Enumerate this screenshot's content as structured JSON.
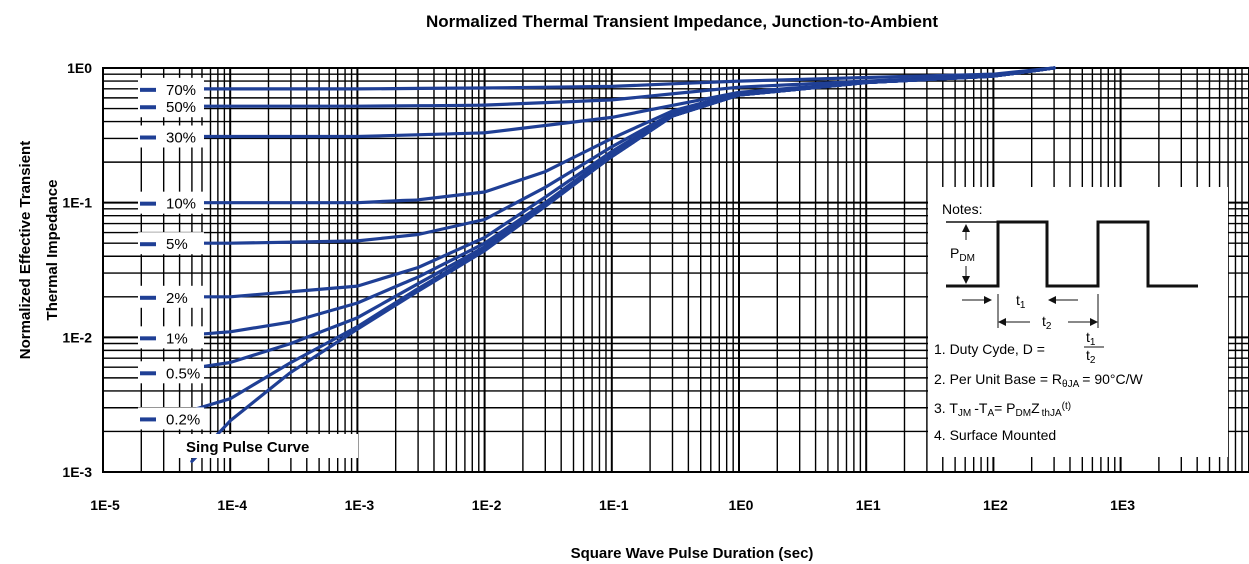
{
  "chart_data": {
    "type": "line",
    "title": "Normalized Thermal Transient Impedance, Junction-to-Ambient",
    "xlabel": "Square Wave Pulse Duration (sec)",
    "ylabel_line1": "Normalized Effective Transient",
    "ylabel_line2": "Thermal Impedance",
    "x_scale": "log",
    "y_scale": "log",
    "xlim": [
      1e-05,
      10000
    ],
    "ylim": [
      0.001,
      1
    ],
    "x_ticks": [
      {
        "value": 1e-05,
        "label": "1E-5"
      },
      {
        "value": 0.0001,
        "label": "1E-4"
      },
      {
        "value": 0.001,
        "label": "1E-3"
      },
      {
        "value": 0.01,
        "label": "1E-2"
      },
      {
        "value": 0.1,
        "label": "1E-1"
      },
      {
        "value": 1,
        "label": "1E0"
      },
      {
        "value": 10,
        "label": "1E1"
      },
      {
        "value": 100,
        "label": "1E2"
      },
      {
        "value": 1000,
        "label": "1E3"
      }
    ],
    "y_ticks": [
      {
        "value": 1,
        "label": "1E0"
      },
      {
        "value": 0.1,
        "label": "1E-1"
      },
      {
        "value": 0.01,
        "label": "1E-2"
      },
      {
        "value": 0.001,
        "label": "1E-3"
      }
    ],
    "grid": true,
    "line_color": "#1f3f95",
    "series": [
      {
        "name": "70%",
        "x": [
          3e-05,
          0.0001,
          0.001,
          0.01,
          0.1,
          1,
          10,
          100,
          300
        ],
        "y": [
          0.7,
          0.7,
          0.7,
          0.71,
          0.73,
          0.8,
          0.85,
          0.9,
          1.0
        ]
      },
      {
        "name": "50%",
        "x": [
          3e-05,
          0.0001,
          0.001,
          0.01,
          0.1,
          1,
          10,
          100,
          300
        ],
        "y": [
          0.52,
          0.52,
          0.52,
          0.53,
          0.58,
          0.72,
          0.8,
          0.88,
          1.0
        ]
      },
      {
        "name": "30%",
        "x": [
          3e-05,
          0.0001,
          0.001,
          0.01,
          0.1,
          1,
          10,
          100,
          300
        ],
        "y": [
          0.31,
          0.31,
          0.31,
          0.33,
          0.43,
          0.66,
          0.78,
          0.87,
          1.0
        ]
      },
      {
        "name": "10%",
        "x": [
          3e-05,
          0.0001,
          0.001,
          0.003,
          0.01,
          0.03,
          0.1,
          0.3,
          1,
          10,
          100,
          300
        ],
        "y": [
          0.1,
          0.1,
          0.1,
          0.105,
          0.12,
          0.17,
          0.3,
          0.48,
          0.65,
          0.78,
          0.87,
          1.0
        ]
      },
      {
        "name": "5%",
        "x": [
          3e-05,
          0.0001,
          0.001,
          0.003,
          0.01,
          0.03,
          0.1,
          0.3,
          1,
          10,
          100,
          300
        ],
        "y": [
          0.05,
          0.05,
          0.052,
          0.058,
          0.075,
          0.13,
          0.26,
          0.46,
          0.64,
          0.78,
          0.87,
          1.0
        ]
      },
      {
        "name": "2%",
        "x": [
          3e-05,
          0.0001,
          0.001,
          0.003,
          0.01,
          0.03,
          0.1,
          0.3,
          1,
          10,
          100,
          300
        ],
        "y": [
          0.02,
          0.02,
          0.024,
          0.033,
          0.055,
          0.11,
          0.24,
          0.45,
          0.63,
          0.78,
          0.87,
          1.0
        ]
      },
      {
        "name": "1%",
        "x": [
          3e-05,
          0.0001,
          0.0003,
          0.001,
          0.003,
          0.01,
          0.03,
          0.1,
          0.3,
          1,
          10,
          100,
          300
        ],
        "y": [
          0.01,
          0.011,
          0.013,
          0.018,
          0.028,
          0.05,
          0.1,
          0.23,
          0.44,
          0.63,
          0.78,
          0.87,
          1.0
        ]
      },
      {
        "name": "0.5%",
        "x": [
          3e-05,
          0.0001,
          0.0003,
          0.001,
          0.003,
          0.01,
          0.03,
          0.1,
          0.3,
          1,
          10,
          100,
          300
        ],
        "y": [
          0.0055,
          0.0065,
          0.009,
          0.014,
          0.025,
          0.047,
          0.098,
          0.22,
          0.44,
          0.63,
          0.78,
          0.87,
          1.0
        ]
      },
      {
        "name": "0.2%",
        "x": [
          3e-05,
          0.0001,
          0.0003,
          0.001,
          0.003,
          0.01,
          0.03,
          0.1,
          0.3,
          1,
          10,
          100,
          300
        ],
        "y": [
          0.0025,
          0.0035,
          0.0065,
          0.012,
          0.023,
          0.045,
          0.095,
          0.22,
          0.44,
          0.63,
          0.78,
          0.87,
          1.0
        ]
      },
      {
        "name": "Sing Pulse Curve",
        "x": [
          5e-05,
          0.0001,
          0.0003,
          0.001,
          0.003,
          0.01,
          0.03,
          0.1,
          0.3,
          1,
          10,
          100,
          300
        ],
        "y": [
          0.0012,
          0.0024,
          0.0055,
          0.0115,
          0.022,
          0.044,
          0.094,
          0.22,
          0.44,
          0.63,
          0.78,
          0.87,
          1.0
        ]
      }
    ],
    "notes": {
      "heading": "Notes:",
      "pdm": "P",
      "pdm_sub": "DM",
      "t1": "t",
      "t1_sub": "1",
      "t2": "t",
      "t2_sub": "2",
      "note1_prefix": "1. Duty Cyde, D =",
      "note1_num": "t",
      "note1_num_sub": "1",
      "note1_den": "t",
      "note1_den_sub": "2",
      "note2_prefix": "2. Per Unit Base = R",
      "note2_sub": "θJA",
      "note2_suffix": "= 90°C/W",
      "note3_a": "3. T",
      "note3_a_sub": "JM",
      "note3_b": "-T",
      "note3_b_sub": "A",
      "note3_c": "= P",
      "note3_c_sub": "DM",
      "note3_d": "Z",
      "note3_d_sub": "thJA",
      "note3_e": "(t)",
      "note4": "4. Surface Mounted"
    }
  }
}
